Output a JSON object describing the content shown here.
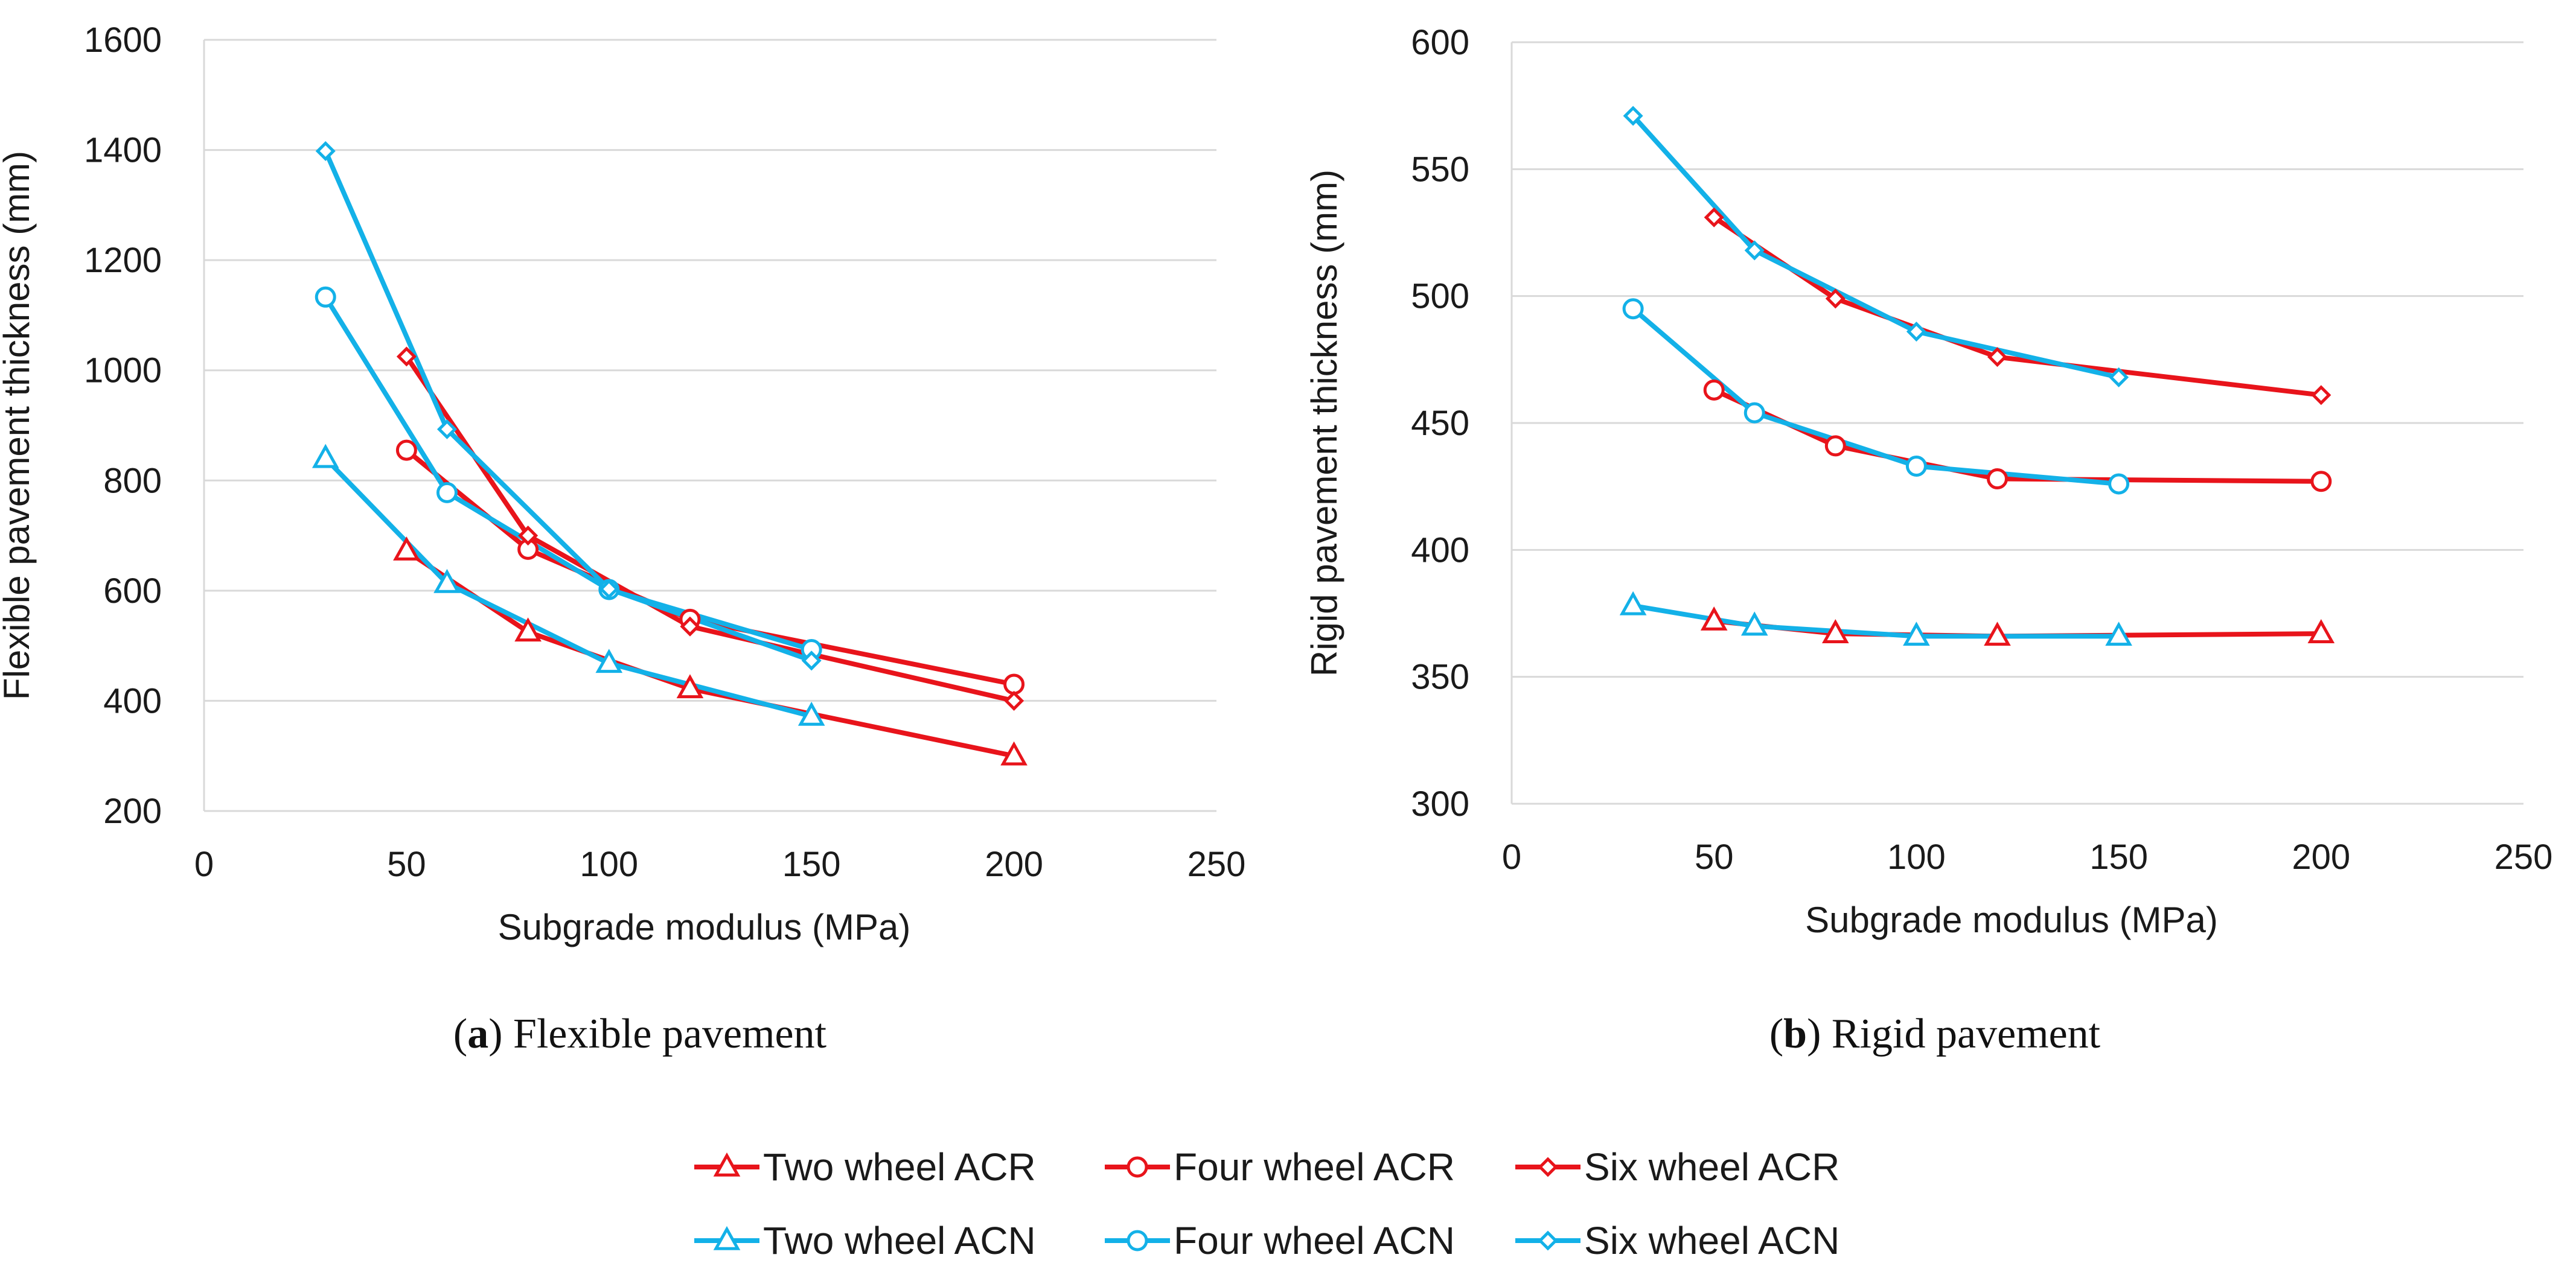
{
  "chart_data": [
    {
      "type": "line",
      "panel": "a",
      "caption_label": "a",
      "caption_text": "Flexible pavement",
      "xlabel": "Subgrade modulus (MPa)",
      "ylabel": "Flexible pavement thickness (mm)",
      "xlim": [
        0,
        250
      ],
      "ylim": [
        200,
        1600
      ],
      "xticks": [
        0,
        50,
        100,
        150,
        200,
        250
      ],
      "yticks": [
        200,
        400,
        600,
        800,
        1000,
        1200,
        1400,
        1600
      ],
      "grid": "horizontal",
      "series": [
        {
          "name": "Two wheel ACR",
          "color": "#e8141b",
          "marker": "triangle",
          "x": [
            50,
            80,
            120,
            200
          ],
          "y": [
            672,
            525,
            422,
            300
          ]
        },
        {
          "name": "Four wheel ACR",
          "color": "#e8141b",
          "marker": "circle",
          "x": [
            50,
            80,
            120,
            200
          ],
          "y": [
            855,
            675,
            548,
            430
          ]
        },
        {
          "name": "Six wheel ACR",
          "color": "#e8141b",
          "marker": "diamond",
          "x": [
            50,
            80,
            120,
            200
          ],
          "y": [
            1025,
            700,
            535,
            400
          ]
        },
        {
          "name": "Two wheel ACN",
          "color": "#13b1e8",
          "marker": "triangle",
          "x": [
            30,
            60,
            100,
            150
          ],
          "y": [
            840,
            613,
            468,
            372
          ]
        },
        {
          "name": "Four wheel ACN",
          "color": "#13b1e8",
          "marker": "circle",
          "x": [
            30,
            60,
            100,
            150
          ],
          "y": [
            1133,
            778,
            602,
            493
          ]
        },
        {
          "name": "Six wheel ACN",
          "color": "#13b1e8",
          "marker": "diamond",
          "x": [
            30,
            60,
            100,
            150
          ],
          "y": [
            1398,
            893,
            603,
            473
          ]
        }
      ]
    },
    {
      "type": "line",
      "panel": "b",
      "caption_label": "b",
      "caption_text": "Rigid pavement",
      "xlabel": "Subgrade modulus (MPa)",
      "ylabel": "Rigid  pavement thickness (mm)",
      "xlim": [
        0,
        250
      ],
      "ylim": [
        300,
        600
      ],
      "xticks": [
        0,
        50,
        100,
        150,
        200,
        250
      ],
      "yticks": [
        300,
        350,
        400,
        450,
        500,
        550,
        600
      ],
      "grid": "horizontal",
      "series": [
        {
          "name": "Two wheel ACR",
          "color": "#e8141b",
          "marker": "triangle",
          "x": [
            50,
            80,
            120,
            200
          ],
          "y": [
            372,
            367,
            366,
            367
          ]
        },
        {
          "name": "Four wheel ACR",
          "color": "#e8141b",
          "marker": "circle",
          "x": [
            50,
            80,
            120,
            200
          ],
          "y": [
            463,
            441,
            428,
            427
          ]
        },
        {
          "name": "Six wheel ACR",
          "color": "#e8141b",
          "marker": "diamond",
          "x": [
            50,
            80,
            120,
            200
          ],
          "y": [
            531,
            499,
            476,
            461
          ]
        },
        {
          "name": "Two wheel ACN",
          "color": "#13b1e8",
          "marker": "triangle",
          "x": [
            30,
            60,
            100,
            150
          ],
          "y": [
            378,
            370,
            366,
            366
          ]
        },
        {
          "name": "Four wheel ACN",
          "color": "#13b1e8",
          "marker": "circle",
          "x": [
            30,
            60,
            100,
            150
          ],
          "y": [
            495,
            454,
            433,
            426
          ]
        },
        {
          "name": "Six wheel ACN",
          "color": "#13b1e8",
          "marker": "diamond",
          "x": [
            30,
            60,
            100,
            150
          ],
          "y": [
            571,
            518,
            486,
            468
          ]
        }
      ]
    }
  ],
  "legend": {
    "position": "bottom-center",
    "entries": [
      {
        "label": "Two wheel ACR",
        "color": "#e8141b",
        "marker": "triangle"
      },
      {
        "label": "Four wheel ACR",
        "color": "#e8141b",
        "marker": "circle"
      },
      {
        "label": "Six wheel ACR",
        "color": "#e8141b",
        "marker": "diamond"
      },
      {
        "label": "Two wheel ACN",
        "color": "#13b1e8",
        "marker": "triangle"
      },
      {
        "label": "Four wheel ACN",
        "color": "#13b1e8",
        "marker": "circle"
      },
      {
        "label": "Six wheel ACN",
        "color": "#13b1e8",
        "marker": "diamond"
      }
    ]
  }
}
